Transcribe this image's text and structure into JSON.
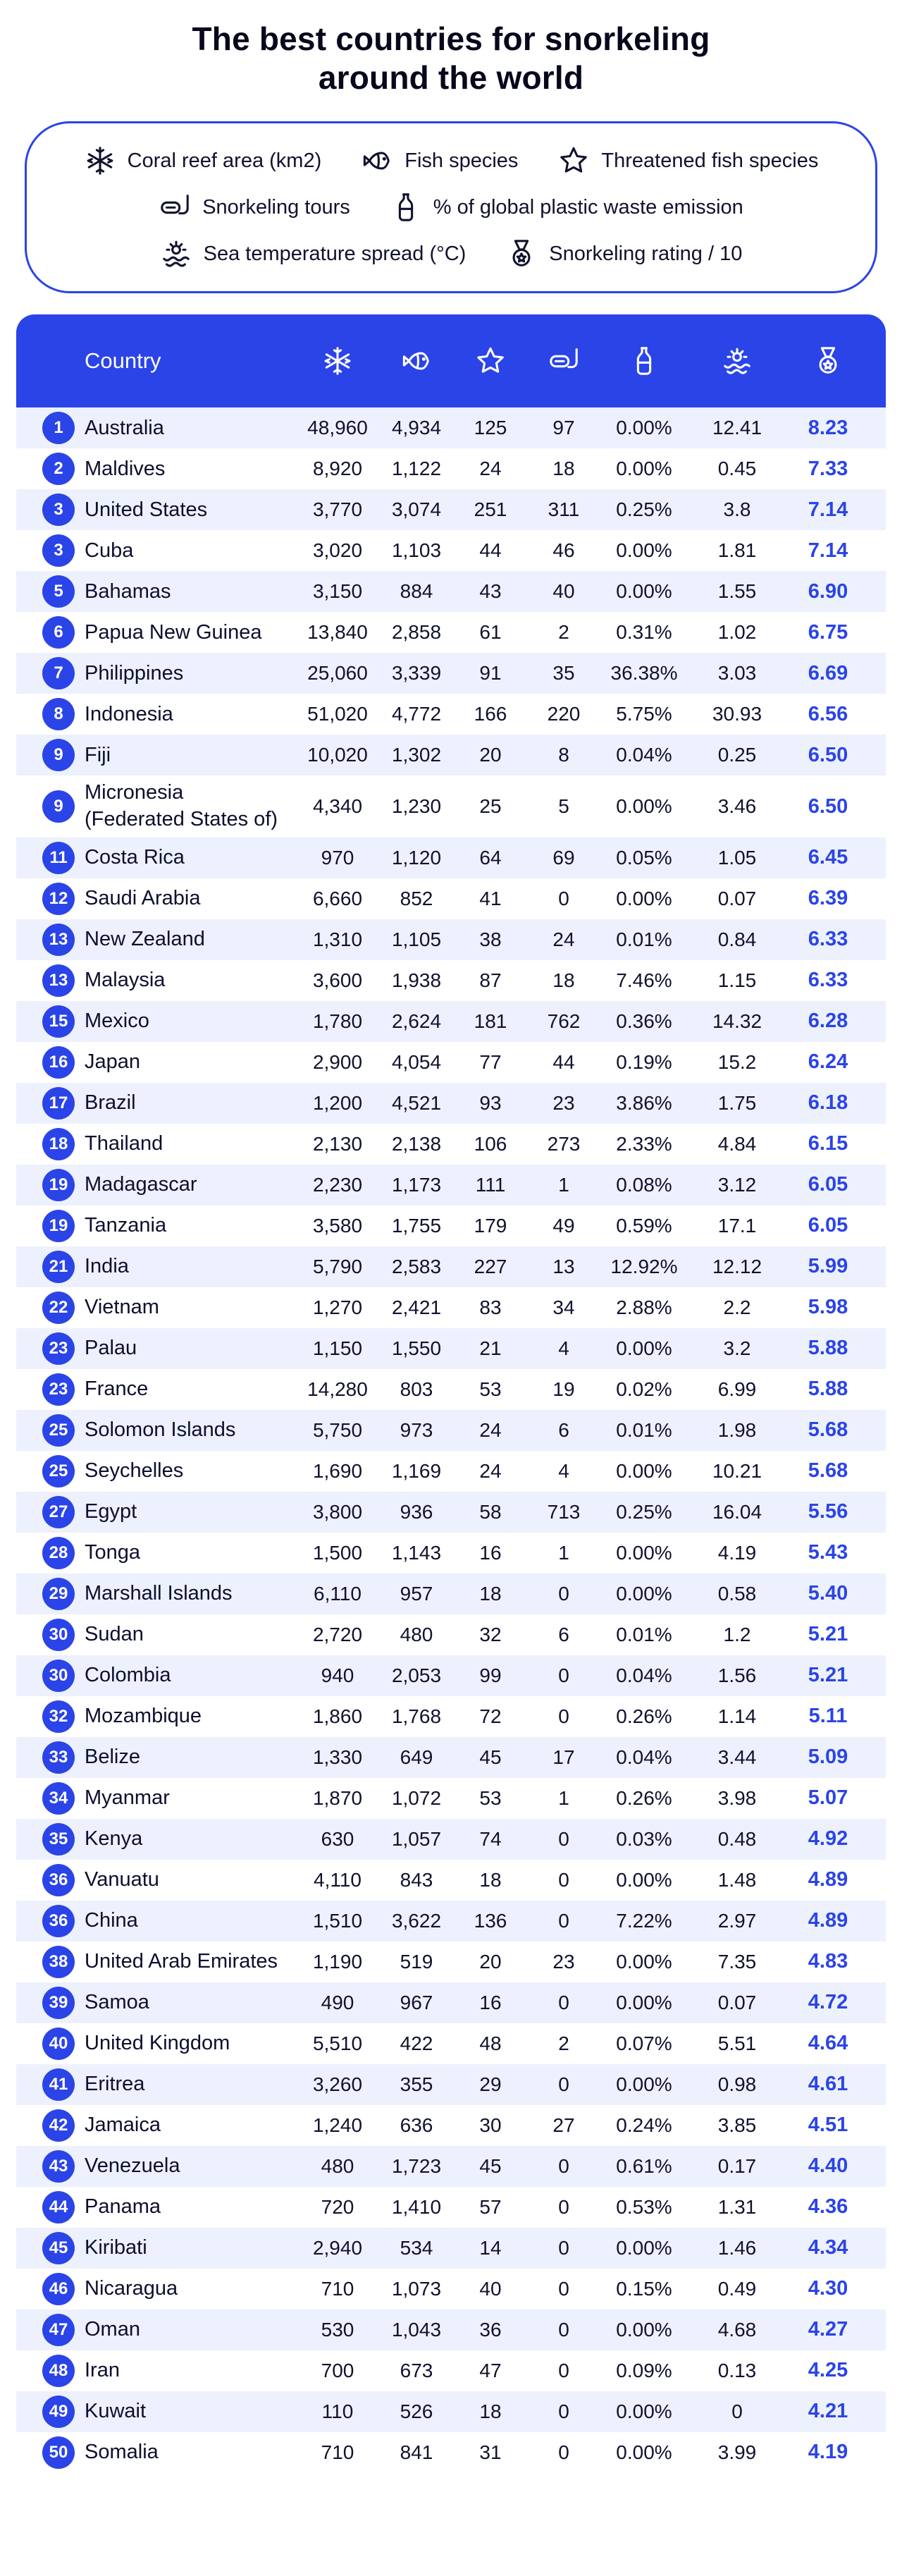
{
  "title_line1": "The best countries for snorkeling",
  "title_line2": "around the world",
  "colors": {
    "accent": "#2B44E8",
    "navy": "#10122E",
    "row_alt": "#EDF1FD",
    "background": "#FFFFFF"
  },
  "legend": {
    "rows": [
      [
        {
          "icon": "coral-reef-icon",
          "label": "Coral reef area (km2)"
        },
        {
          "icon": "fish-icon",
          "label": "Fish species"
        },
        {
          "icon": "threatened-fish-icon",
          "label": "Threatened fish species"
        }
      ],
      [
        {
          "icon": "snorkel-icon",
          "label": "Snorkeling tours"
        },
        {
          "icon": "bottle-icon",
          "label": "% of global plastic waste emission"
        }
      ],
      [
        {
          "icon": "sea-temp-icon",
          "label": "Sea temperature spread (°C)"
        },
        {
          "icon": "medal-icon",
          "label": "Snorkeling rating / 10"
        }
      ]
    ]
  },
  "table_header": {
    "country_label": "Country",
    "icons": [
      "coral-reef-icon",
      "fish-icon",
      "threatened-fish-icon",
      "snorkel-icon",
      "bottle-icon",
      "sea-temp-icon",
      "medal-icon"
    ]
  },
  "chart_data": {
    "type": "table",
    "title": "The best countries for snorkeling around the world",
    "columns": [
      "Rank",
      "Country",
      "Coral reef area (km2)",
      "Fish species",
      "Threatened fish species",
      "Snorkeling tours",
      "% of global plastic waste emission",
      "Sea temperature spread (°C)",
      "Snorkeling rating / 10"
    ],
    "rows": [
      {
        "rank": "1",
        "country": "Australia",
        "values": [
          "48,960",
          "4,934",
          "125",
          "97",
          "0.00%",
          "12.41",
          "8.23"
        ]
      },
      {
        "rank": "2",
        "country": "Maldives",
        "values": [
          "8,920",
          "1,122",
          "24",
          "18",
          "0.00%",
          "0.45",
          "7.33"
        ]
      },
      {
        "rank": "3",
        "country": "United States",
        "values": [
          "3,770",
          "3,074",
          "251",
          "311",
          "0.25%",
          "3.8",
          "7.14"
        ]
      },
      {
        "rank": "3",
        "country": "Cuba",
        "values": [
          "3,020",
          "1,103",
          "44",
          "46",
          "0.00%",
          "1.81",
          "7.14"
        ]
      },
      {
        "rank": "5",
        "country": "Bahamas",
        "values": [
          "3,150",
          "884",
          "43",
          "40",
          "0.00%",
          "1.55",
          "6.90"
        ]
      },
      {
        "rank": "6",
        "country": "Papua New Guinea",
        "values": [
          "13,840",
          "2,858",
          "61",
          "2",
          "0.31%",
          "1.02",
          "6.75"
        ]
      },
      {
        "rank": "7",
        "country": "Philippines",
        "values": [
          "25,060",
          "3,339",
          "91",
          "35",
          "36.38%",
          "3.03",
          "6.69"
        ]
      },
      {
        "rank": "8",
        "country": "Indonesia",
        "values": [
          "51,020",
          "4,772",
          "166",
          "220",
          "5.75%",
          "30.93",
          "6.56"
        ]
      },
      {
        "rank": "9",
        "country": "Fiji",
        "values": [
          "10,020",
          "1,302",
          "20",
          "8",
          "0.04%",
          "0.25",
          "6.50"
        ]
      },
      {
        "rank": "9",
        "country": "Micronesia\n(Federated States of)",
        "values": [
          "4,340",
          "1,230",
          "25",
          "5",
          "0.00%",
          "3.46",
          "6.50"
        ]
      },
      {
        "rank": "11",
        "country": "Costa Rica",
        "values": [
          "970",
          "1,120",
          "64",
          "69",
          "0.05%",
          "1.05",
          "6.45"
        ]
      },
      {
        "rank": "12",
        "country": "Saudi Arabia",
        "values": [
          "6,660",
          "852",
          "41",
          "0",
          "0.00%",
          "0.07",
          "6.39"
        ]
      },
      {
        "rank": "13",
        "country": "New Zealand",
        "values": [
          "1,310",
          "1,105",
          "38",
          "24",
          "0.01%",
          "0.84",
          "6.33"
        ]
      },
      {
        "rank": "13",
        "country": "Malaysia",
        "values": [
          "3,600",
          "1,938",
          "87",
          "18",
          "7.46%",
          "1.15",
          "6.33"
        ]
      },
      {
        "rank": "15",
        "country": "Mexico",
        "values": [
          "1,780",
          "2,624",
          "181",
          "762",
          "0.36%",
          "14.32",
          "6.28"
        ]
      },
      {
        "rank": "16",
        "country": "Japan",
        "values": [
          "2,900",
          "4,054",
          "77",
          "44",
          "0.19%",
          "15.2",
          "6.24"
        ]
      },
      {
        "rank": "17",
        "country": "Brazil",
        "values": [
          "1,200",
          "4,521",
          "93",
          "23",
          "3.86%",
          "1.75",
          "6.18"
        ]
      },
      {
        "rank": "18",
        "country": "Thailand",
        "values": [
          "2,130",
          "2,138",
          "106",
          "273",
          "2.33%",
          "4.84",
          "6.15"
        ]
      },
      {
        "rank": "19",
        "country": "Madagascar",
        "values": [
          "2,230",
          "1,173",
          "111",
          "1",
          "0.08%",
          "3.12",
          "6.05"
        ]
      },
      {
        "rank": "19",
        "country": "Tanzania",
        "values": [
          "3,580",
          "1,755",
          "179",
          "49",
          "0.59%",
          "17.1",
          "6.05"
        ]
      },
      {
        "rank": "21",
        "country": "India",
        "values": [
          "5,790",
          "2,583",
          "227",
          "13",
          "12.92%",
          "12.12",
          "5.99"
        ]
      },
      {
        "rank": "22",
        "country": "Vietnam",
        "values": [
          "1,270",
          "2,421",
          "83",
          "34",
          "2.88%",
          "2.2",
          "5.98"
        ]
      },
      {
        "rank": "23",
        "country": "Palau",
        "values": [
          "1,150",
          "1,550",
          "21",
          "4",
          "0.00%",
          "3.2",
          "5.88"
        ]
      },
      {
        "rank": "23",
        "country": "France",
        "values": [
          "14,280",
          "803",
          "53",
          "19",
          "0.02%",
          "6.99",
          "5.88"
        ]
      },
      {
        "rank": "25",
        "country": "Solomon Islands",
        "values": [
          "5,750",
          "973",
          "24",
          "6",
          "0.01%",
          "1.98",
          "5.68"
        ]
      },
      {
        "rank": "25",
        "country": "Seychelles",
        "values": [
          "1,690",
          "1,169",
          "24",
          "4",
          "0.00%",
          "10.21",
          "5.68"
        ]
      },
      {
        "rank": "27",
        "country": "Egypt",
        "values": [
          "3,800",
          "936",
          "58",
          "713",
          "0.25%",
          "16.04",
          "5.56"
        ]
      },
      {
        "rank": "28",
        "country": "Tonga",
        "values": [
          "1,500",
          "1,143",
          "16",
          "1",
          "0.00%",
          "4.19",
          "5.43"
        ]
      },
      {
        "rank": "29",
        "country": "Marshall Islands",
        "values": [
          "6,110",
          "957",
          "18",
          "0",
          "0.00%",
          "0.58",
          "5.40"
        ]
      },
      {
        "rank": "30",
        "country": "Sudan",
        "values": [
          "2,720",
          "480",
          "32",
          "6",
          "0.01%",
          "1.2",
          "5.21"
        ]
      },
      {
        "rank": "30",
        "country": "Colombia",
        "values": [
          "940",
          "2,053",
          "99",
          "0",
          "0.04%",
          "1.56",
          "5.21"
        ]
      },
      {
        "rank": "32",
        "country": "Mozambique",
        "values": [
          "1,860",
          "1,768",
          "72",
          "0",
          "0.26%",
          "1.14",
          "5.11"
        ]
      },
      {
        "rank": "33",
        "country": "Belize",
        "values": [
          "1,330",
          "649",
          "45",
          "17",
          "0.04%",
          "3.44",
          "5.09"
        ]
      },
      {
        "rank": "34",
        "country": "Myanmar",
        "values": [
          "1,870",
          "1,072",
          "53",
          "1",
          "0.26%",
          "3.98",
          "5.07"
        ]
      },
      {
        "rank": "35",
        "country": "Kenya",
        "values": [
          "630",
          "1,057",
          "74",
          "0",
          "0.03%",
          "0.48",
          "4.92"
        ]
      },
      {
        "rank": "36",
        "country": "Vanuatu",
        "values": [
          "4,110",
          "843",
          "18",
          "0",
          "0.00%",
          "1.48",
          "4.89"
        ]
      },
      {
        "rank": "36",
        "country": "China",
        "values": [
          "1,510",
          "3,622",
          "136",
          "0",
          "7.22%",
          "2.97",
          "4.89"
        ]
      },
      {
        "rank": "38",
        "country": "United Arab Emirates",
        "values": [
          "1,190",
          "519",
          "20",
          "23",
          "0.00%",
          "7.35",
          "4.83"
        ]
      },
      {
        "rank": "39",
        "country": "Samoa",
        "values": [
          "490",
          "967",
          "16",
          "0",
          "0.00%",
          "0.07",
          "4.72"
        ]
      },
      {
        "rank": "40",
        "country": "United Kingdom",
        "values": [
          "5,510",
          "422",
          "48",
          "2",
          "0.07%",
          "5.51",
          "4.64"
        ]
      },
      {
        "rank": "41",
        "country": "Eritrea",
        "values": [
          "3,260",
          "355",
          "29",
          "0",
          "0.00%",
          "0.98",
          "4.61"
        ]
      },
      {
        "rank": "42",
        "country": "Jamaica",
        "values": [
          "1,240",
          "636",
          "30",
          "27",
          "0.24%",
          "3.85",
          "4.51"
        ]
      },
      {
        "rank": "43",
        "country": "Venezuela",
        "values": [
          "480",
          "1,723",
          "45",
          "0",
          "0.61%",
          "0.17",
          "4.40"
        ]
      },
      {
        "rank": "44",
        "country": "Panama",
        "values": [
          "720",
          "1,410",
          "57",
          "0",
          "0.53%",
          "1.31",
          "4.36"
        ]
      },
      {
        "rank": "45",
        "country": "Kiribati",
        "values": [
          "2,940",
          "534",
          "14",
          "0",
          "0.00%",
          "1.46",
          "4.34"
        ]
      },
      {
        "rank": "46",
        "country": "Nicaragua",
        "values": [
          "710",
          "1,073",
          "40",
          "0",
          "0.15%",
          "0.49",
          "4.30"
        ]
      },
      {
        "rank": "47",
        "country": "Oman",
        "values": [
          "530",
          "1,043",
          "36",
          "0",
          "0.00%",
          "4.68",
          "4.27"
        ]
      },
      {
        "rank": "48",
        "country": "Iran",
        "values": [
          "700",
          "673",
          "47",
          "0",
          "0.09%",
          "0.13",
          "4.25"
        ]
      },
      {
        "rank": "49",
        "country": "Kuwait",
        "values": [
          "110",
          "526",
          "18",
          "0",
          "0.00%",
          "0",
          "4.21"
        ]
      },
      {
        "rank": "50",
        "country": "Somalia",
        "values": [
          "710",
          "841",
          "31",
          "0",
          "0.00%",
          "3.99",
          "4.19"
        ]
      }
    ]
  }
}
